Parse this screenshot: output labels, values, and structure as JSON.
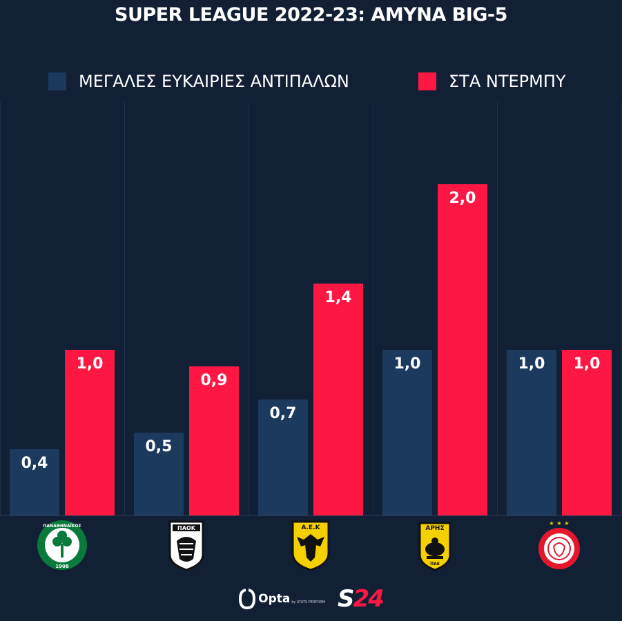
{
  "chart_data": {
    "type": "bar",
    "title": "SUPER LEAGUE 2022-23: ΑΜΥΝΑ BIG-5",
    "categories": [
      "Παναθηναϊκός",
      "ΠΑΟΚ",
      "ΑΕΚ",
      "Άρης",
      "Ολυμπιακός"
    ],
    "series": [
      {
        "name": "ΜΕΓΑΛΕΣ ΕΥΚΑΙΡΙΕΣ ΑΝΤΙΠΑΛΩΝ",
        "color": "#1b3a5e",
        "values": [
          0.4,
          0.5,
          0.7,
          1.0,
          1.0
        ],
        "labels": [
          "0,4",
          "0,5",
          "0,7",
          "1,0",
          "1,0"
        ]
      },
      {
        "name": "ΣΤΑ ΝΤΕΡΜΠΥ",
        "color": "#ff1744",
        "values": [
          1.0,
          0.9,
          1.4,
          2.0,
          1.0
        ],
        "labels": [
          "1,0",
          "0,9",
          "1,4",
          "2,0",
          "1,0"
        ]
      }
    ],
    "ylim": [
      0,
      2.5
    ],
    "grid": false,
    "legend_position": "top"
  },
  "logos": [
    {
      "icon": "panathinaikos-logo",
      "text_top": "ΠΑΝΑΘΗΝΑΪΚΟΣ",
      "text_bottom": "1908"
    },
    {
      "icon": "paok-logo",
      "text_top": "ΠΑΟΚ"
    },
    {
      "icon": "aek-logo",
      "text_top": "Α.Ε.Κ"
    },
    {
      "icon": "aris-logo",
      "text_top": "ΑΡΗΣ",
      "text_bottom": "ΠΑΕ"
    },
    {
      "icon": "olympiacos-logo"
    }
  ],
  "footer": {
    "opta": "Opta",
    "opta_sub": "by STATS PERFORM",
    "brand_letter": "S",
    "brand_number": "24"
  }
}
